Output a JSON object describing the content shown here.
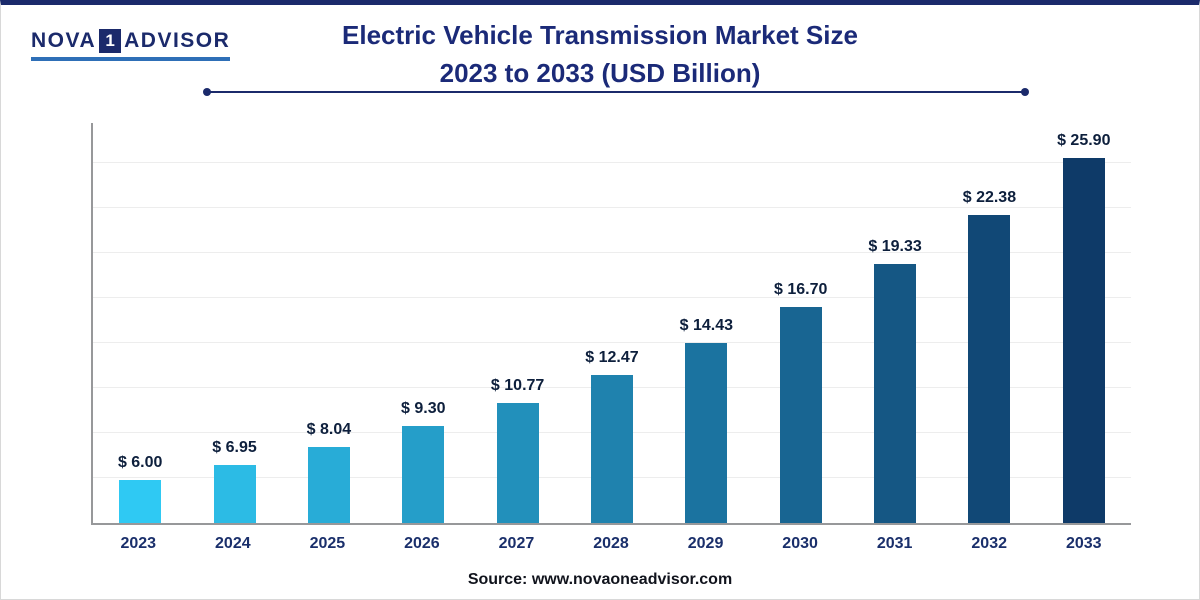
{
  "logo": {
    "text_left": "NOVA",
    "box_digit": "1",
    "text_right": "ADVISOR"
  },
  "title": {
    "line1": "Electric Vehicle Transmission Market Size",
    "line2": "2023 to 2033 (USD Billion)"
  },
  "source_text": "Source: www.novaoneadvisor.com",
  "chart_data": {
    "type": "bar",
    "title": "Electric Vehicle Transmission Market Size 2023 to 2033 (USD Billion)",
    "categories": [
      "2023",
      "2024",
      "2025",
      "2026",
      "2027",
      "2028",
      "2029",
      "2030",
      "2031",
      "2032",
      "2033"
    ],
    "values": [
      6.0,
      6.95,
      8.04,
      9.3,
      10.77,
      12.47,
      14.43,
      16.7,
      19.33,
      22.38,
      25.9
    ],
    "value_prefix": "$ ",
    "unit": "USD Billion",
    "xlabel": "",
    "ylabel": "",
    "grid": "horizontal",
    "legend": "none",
    "bar_color_start": "#2fc9f3",
    "bar_color_end": "#0e3a68",
    "value_label_color": "#0d1f3c",
    "axis_label_color": "#1a2f6b"
  }
}
